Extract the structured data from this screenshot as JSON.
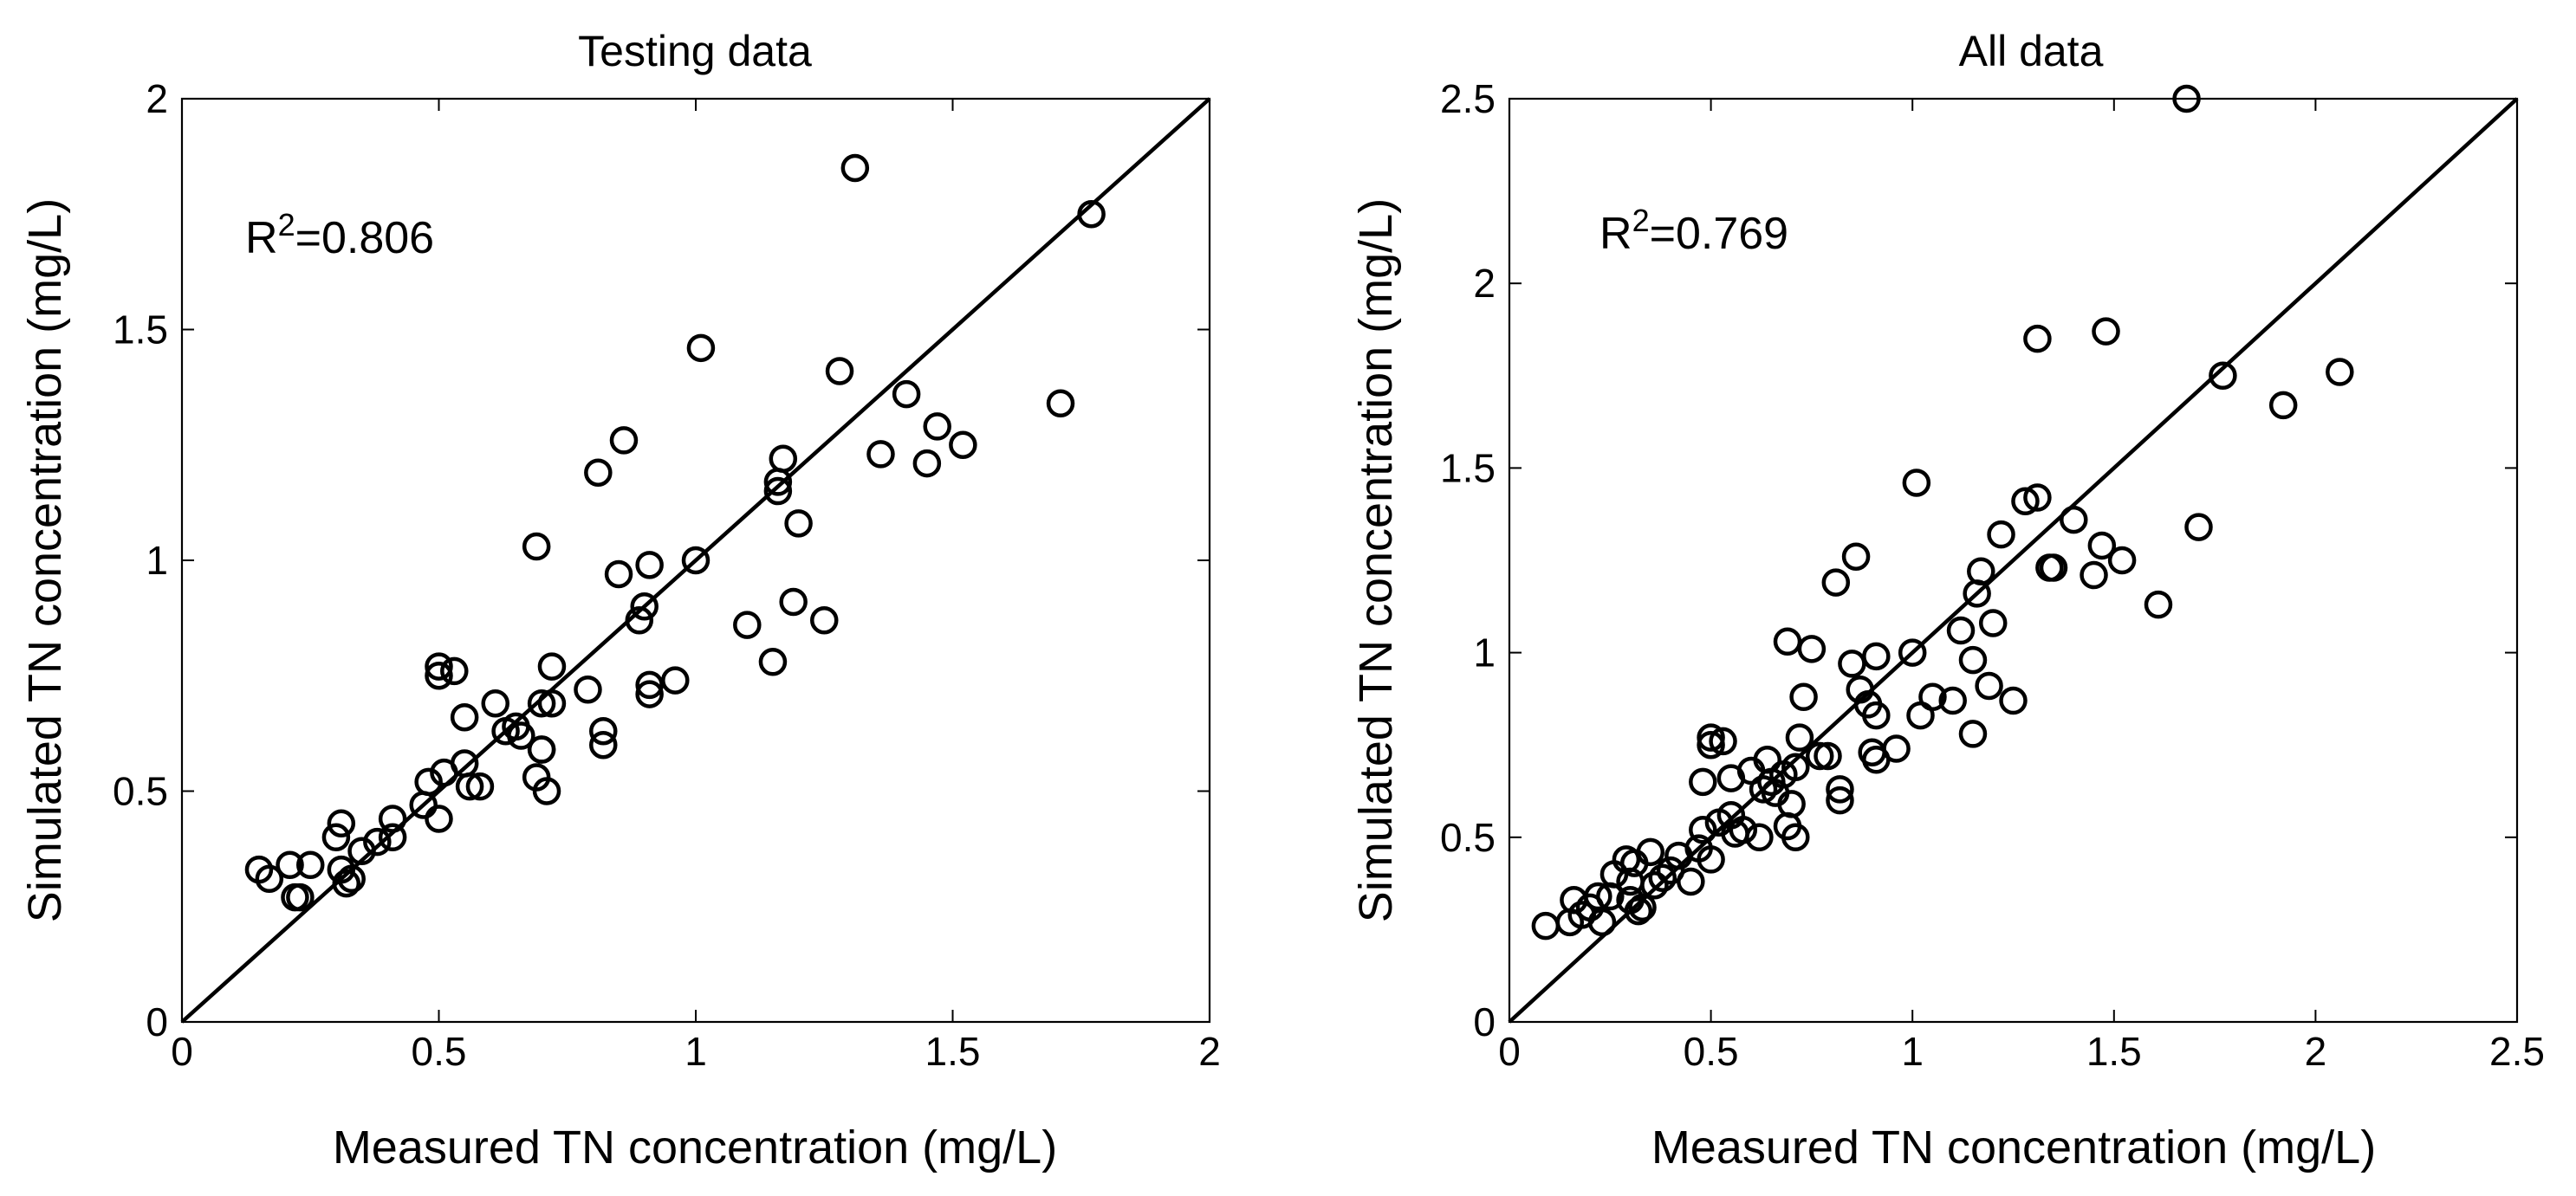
{
  "chart_data": [
    {
      "type": "scatter",
      "title": "Testing data",
      "xlabel": "Measured TN concentration (mg/L)",
      "ylabel": "Simulated TN concentration (mg/L)",
      "xlim": [
        0,
        2
      ],
      "ylim": [
        0,
        2
      ],
      "xticks": [
        0,
        0.5,
        1,
        1.5,
        2
      ],
      "yticks": [
        0,
        0.5,
        1,
        1.5,
        2
      ],
      "xtick_labels": [
        "0",
        "0.5",
        "1",
        "1.5",
        "2"
      ],
      "ytick_labels": [
        "0",
        "0.5",
        "1",
        "1.5",
        "2"
      ],
      "grid": false,
      "reference_line": "y = x",
      "annotation": {
        "label": "R",
        "superscript": "2",
        "value": "=0.806"
      },
      "points": [
        [
          0.15,
          0.33
        ],
        [
          0.17,
          0.31
        ],
        [
          0.21,
          0.34
        ],
        [
          0.22,
          0.27
        ],
        [
          0.23,
          0.27
        ],
        [
          0.25,
          0.34
        ],
        [
          0.3,
          0.4
        ],
        [
          0.31,
          0.43
        ],
        [
          0.31,
          0.33
        ],
        [
          0.32,
          0.3
        ],
        [
          0.33,
          0.31
        ],
        [
          0.35,
          0.37
        ],
        [
          0.38,
          0.39
        ],
        [
          0.41,
          0.4
        ],
        [
          0.41,
          0.44
        ],
        [
          0.47,
          0.47
        ],
        [
          0.48,
          0.52
        ],
        [
          0.5,
          0.77
        ],
        [
          0.5,
          0.75
        ],
        [
          0.5,
          0.44
        ],
        [
          0.51,
          0.54
        ],
        [
          0.53,
          0.76
        ],
        [
          0.55,
          0.66
        ],
        [
          0.55,
          0.56
        ],
        [
          0.56,
          0.51
        ],
        [
          0.58,
          0.51
        ],
        [
          0.61,
          0.69
        ],
        [
          0.63,
          0.63
        ],
        [
          0.65,
          0.64
        ],
        [
          0.66,
          0.62
        ],
        [
          0.69,
          1.03
        ],
        [
          0.69,
          0.53
        ],
        [
          0.7,
          0.59
        ],
        [
          0.7,
          0.59
        ],
        [
          0.7,
          0.69
        ],
        [
          0.71,
          0.5
        ],
        [
          0.72,
          0.69
        ],
        [
          0.72,
          0.77
        ],
        [
          0.79,
          0.72
        ],
        [
          0.81,
          1.19
        ],
        [
          0.82,
          0.63
        ],
        [
          0.82,
          0.6
        ],
        [
          0.85,
          0.97
        ],
        [
          0.86,
          1.26
        ],
        [
          0.89,
          0.87
        ],
        [
          0.9,
          0.9
        ],
        [
          0.91,
          0.99
        ],
        [
          0.91,
          0.73
        ],
        [
          0.91,
          0.71
        ],
        [
          0.96,
          0.74
        ],
        [
          1.0,
          1.0
        ],
        [
          1.01,
          1.46
        ],
        [
          1.1,
          0.86
        ],
        [
          1.15,
          0.78
        ],
        [
          1.16,
          1.17
        ],
        [
          1.16,
          1.15
        ],
        [
          1.17,
          1.22
        ],
        [
          1.19,
          0.91
        ],
        [
          1.2,
          1.08
        ],
        [
          1.25,
          0.87
        ],
        [
          1.28,
          1.41
        ],
        [
          1.31,
          1.85
        ],
        [
          1.36,
          1.23
        ],
        [
          1.41,
          1.36
        ],
        [
          1.45,
          1.21
        ],
        [
          1.47,
          1.29
        ],
        [
          1.52,
          1.25
        ],
        [
          1.71,
          1.34
        ],
        [
          1.77,
          1.75
        ]
      ]
    },
    {
      "type": "scatter",
      "title": "All data",
      "xlabel": "Measured TN concentration (mg/L)",
      "ylabel": "Simulated TN concentration (mg/L)",
      "xlim": [
        0,
        2.5
      ],
      "ylim": [
        0,
        2.5
      ],
      "xticks": [
        0,
        0.5,
        1,
        1.5,
        2,
        2.5
      ],
      "yticks": [
        0,
        0.5,
        1,
        1.5,
        2,
        2.5
      ],
      "xtick_labels": [
        "0",
        "0.5",
        "1",
        "1.5",
        "2",
        "2.5"
      ],
      "ytick_labels": [
        "0",
        "0.5",
        "1",
        "1.5",
        "2",
        "2.5"
      ],
      "grid": false,
      "reference_line": "y = x",
      "annotation": {
        "label": "R",
        "superscript": "2",
        "value": "=0.769"
      },
      "points": [
        [
          0.09,
          0.26
        ],
        [
          0.15,
          0.27
        ],
        [
          0.16,
          0.33
        ],
        [
          0.18,
          0.29
        ],
        [
          0.2,
          0.31
        ],
        [
          0.22,
          0.34
        ],
        [
          0.23,
          0.27
        ],
        [
          0.25,
          0.34
        ],
        [
          0.26,
          0.4
        ],
        [
          0.29,
          0.44
        ],
        [
          0.3,
          0.38
        ],
        [
          0.3,
          0.33
        ],
        [
          0.31,
          0.43
        ],
        [
          0.32,
          0.3
        ],
        [
          0.33,
          0.31
        ],
        [
          0.35,
          0.46
        ],
        [
          0.36,
          0.37
        ],
        [
          0.38,
          0.39
        ],
        [
          0.4,
          0.41
        ],
        [
          0.42,
          0.45
        ],
        [
          0.45,
          0.38
        ],
        [
          0.47,
          0.47
        ],
        [
          0.48,
          0.52
        ],
        [
          0.48,
          0.65
        ],
        [
          0.5,
          0.77
        ],
        [
          0.5,
          0.75
        ],
        [
          0.5,
          0.44
        ],
        [
          0.52,
          0.54
        ],
        [
          0.53,
          0.76
        ],
        [
          0.55,
          0.66
        ],
        [
          0.55,
          0.56
        ],
        [
          0.56,
          0.51
        ],
        [
          0.58,
          0.52
        ],
        [
          0.6,
          0.68
        ],
        [
          0.62,
          0.5
        ],
        [
          0.63,
          0.63
        ],
        [
          0.64,
          0.71
        ],
        [
          0.65,
          0.65
        ],
        [
          0.66,
          0.62
        ],
        [
          0.68,
          0.67
        ],
        [
          0.69,
          1.03
        ],
        [
          0.69,
          0.53
        ],
        [
          0.7,
          0.59
        ],
        [
          0.71,
          0.69
        ],
        [
          0.71,
          0.5
        ],
        [
          0.72,
          0.77
        ],
        [
          0.73,
          0.88
        ],
        [
          0.75,
          1.01
        ],
        [
          0.77,
          0.72
        ],
        [
          0.79,
          0.72
        ],
        [
          0.81,
          1.19
        ],
        [
          0.82,
          0.63
        ],
        [
          0.82,
          0.6
        ],
        [
          0.85,
          0.97
        ],
        [
          0.86,
          1.26
        ],
        [
          0.87,
          0.9
        ],
        [
          0.89,
          0.86
        ],
        [
          0.9,
          0.73
        ],
        [
          0.91,
          0.99
        ],
        [
          0.91,
          0.83
        ],
        [
          0.91,
          0.71
        ],
        [
          0.96,
          0.74
        ],
        [
          1.0,
          1.0
        ],
        [
          1.01,
          1.46
        ],
        [
          1.02,
          0.83
        ],
        [
          1.05,
          0.88
        ],
        [
          1.1,
          0.87
        ],
        [
          1.12,
          1.06
        ],
        [
          1.15,
          0.78
        ],
        [
          1.15,
          0.98
        ],
        [
          1.16,
          1.16
        ],
        [
          1.17,
          1.22
        ],
        [
          1.19,
          0.91
        ],
        [
          1.2,
          1.08
        ],
        [
          1.22,
          1.32
        ],
        [
          1.25,
          0.87
        ],
        [
          1.28,
          1.41
        ],
        [
          1.31,
          1.85
        ],
        [
          1.31,
          1.42
        ],
        [
          1.34,
          1.23
        ],
        [
          1.35,
          1.23
        ],
        [
          1.4,
          1.36
        ],
        [
          1.45,
          1.21
        ],
        [
          1.47,
          1.29
        ],
        [
          1.48,
          1.87
        ],
        [
          1.52,
          1.25
        ],
        [
          1.61,
          1.13
        ],
        [
          1.71,
          1.34
        ],
        [
          1.68,
          2.5
        ],
        [
          1.77,
          1.75
        ],
        [
          1.92,
          1.67
        ],
        [
          2.06,
          1.76
        ]
      ]
    }
  ]
}
